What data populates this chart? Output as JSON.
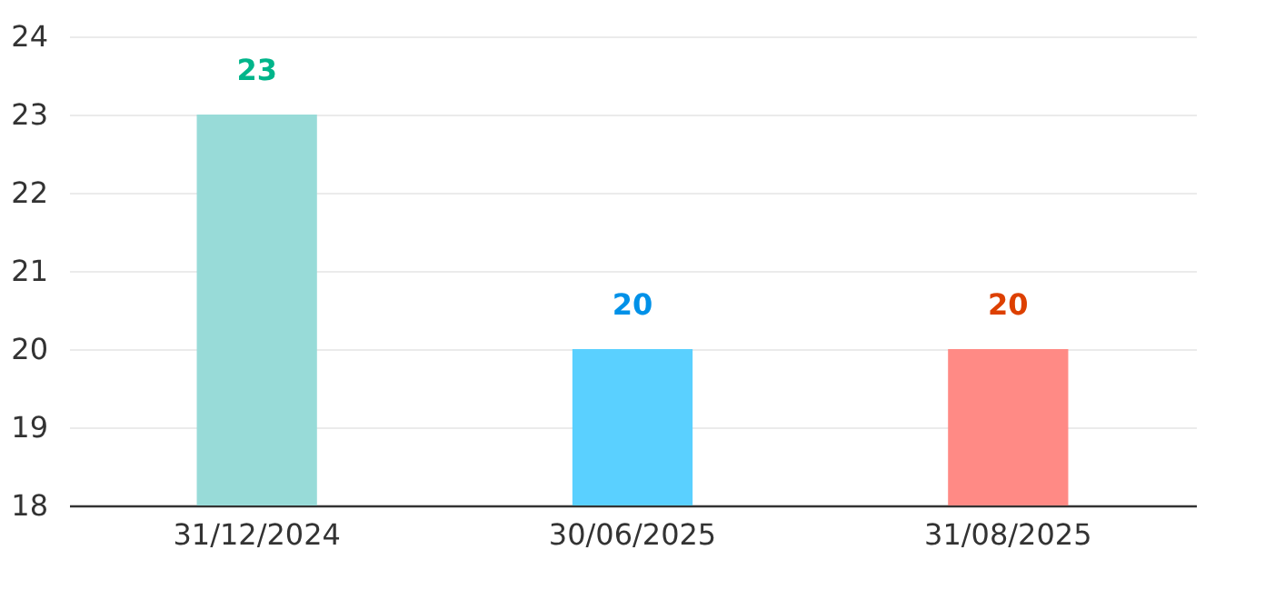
{
  "chart_data": {
    "type": "bar",
    "categories": [
      "31/12/2024",
      "30/06/2025",
      "31/08/2025"
    ],
    "values": [
      23,
      20,
      20
    ],
    "colors": [
      "#98dbd8",
      "#5ad0ff",
      "#ff8a85"
    ],
    "ylim": [
      18,
      24
    ],
    "yticks": [
      18,
      19,
      20,
      21,
      22,
      23,
      24
    ],
    "grid": "y",
    "data_labels": true
  }
}
